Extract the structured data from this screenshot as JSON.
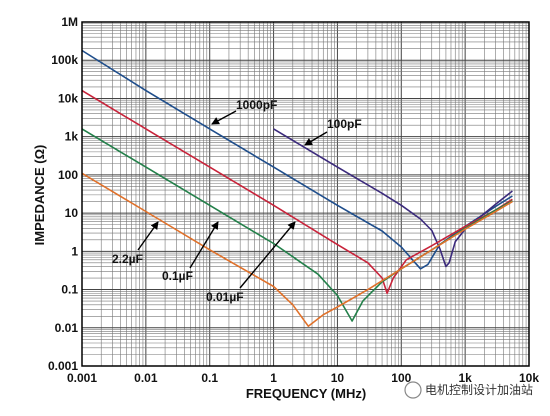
{
  "chart_data": {
    "type": "line",
    "xlabel": "FREQUENCY (MHz)",
    "ylabel": "IMPEDANCE (Ω)",
    "x_scale": "log",
    "y_scale": "log",
    "xlim": [
      0.001,
      10000
    ],
    "ylim": [
      0.001,
      1000000
    ],
    "grid": true,
    "x_ticks": [
      "0.001",
      "0.01",
      "0.1",
      "1",
      "10",
      "100",
      "1k",
      "10k"
    ],
    "y_ticks": [
      "0.001",
      "0.01",
      "0.1",
      "1",
      "10",
      "100",
      "1k",
      "10k",
      "100k",
      "1M"
    ],
    "series": [
      {
        "name": "1000pF",
        "color": "#1f4e8c",
        "points": [
          [
            0.001,
            180000
          ],
          [
            0.01,
            16000
          ],
          [
            0.1,
            1600
          ],
          [
            1,
            160
          ],
          [
            10,
            16
          ],
          [
            50,
            3.4
          ],
          [
            100,
            1.3
          ],
          [
            150,
            0.6
          ],
          [
            200,
            0.35
          ],
          [
            260,
            0.45
          ],
          [
            400,
            1.5
          ],
          [
            1000,
            4.5
          ],
          [
            3000,
            15
          ],
          [
            5500,
            28
          ]
        ]
      },
      {
        "name": "100pF",
        "color": "#3b2a7c",
        "points": [
          [
            1,
            1600
          ],
          [
            10,
            160
          ],
          [
            50,
            33
          ],
          [
            100,
            16
          ],
          [
            200,
            7
          ],
          [
            300,
            3.5
          ],
          [
            400,
            1.2
          ],
          [
            500,
            0.4
          ],
          [
            560,
            0.5
          ],
          [
            700,
            1.8
          ],
          [
            1000,
            3.8
          ],
          [
            3000,
            17
          ],
          [
            5500,
            38
          ]
        ]
      },
      {
        "name": "0.01µF",
        "color": "#c8233a",
        "points": [
          [
            0.001,
            16000
          ],
          [
            0.01,
            1600
          ],
          [
            0.1,
            160
          ],
          [
            1,
            16
          ],
          [
            10,
            1.5
          ],
          [
            30,
            0.5
          ],
          [
            50,
            0.2
          ],
          [
            60,
            0.08
          ],
          [
            75,
            0.2
          ],
          [
            120,
            0.6
          ],
          [
            300,
            1.4
          ],
          [
            1000,
            4.5
          ],
          [
            3000,
            12
          ],
          [
            5500,
            23
          ]
        ]
      },
      {
        "name": "0.1µF",
        "color": "#23804a",
        "points": [
          [
            0.001,
            1600
          ],
          [
            0.01,
            160
          ],
          [
            0.1,
            16
          ],
          [
            1,
            1.6
          ],
          [
            5,
            0.25
          ],
          [
            10,
            0.07
          ],
          [
            17,
            0.015
          ],
          [
            25,
            0.05
          ],
          [
            50,
            0.16
          ],
          [
            100,
            0.35
          ],
          [
            300,
            1.1
          ],
          [
            1000,
            4
          ],
          [
            3000,
            12
          ],
          [
            5500,
            21
          ]
        ]
      },
      {
        "name": "2.2µF",
        "color": "#e0712a",
        "points": [
          [
            0.001,
            110
          ],
          [
            0.01,
            11
          ],
          [
            0.1,
            1.1
          ],
          [
            1,
            0.12
          ],
          [
            2,
            0.04
          ],
          [
            3.5,
            0.011
          ],
          [
            6,
            0.022
          ],
          [
            10,
            0.035
          ],
          [
            30,
            0.1
          ],
          [
            100,
            0.35
          ],
          [
            300,
            1.1
          ],
          [
            1000,
            3.8
          ],
          [
            3000,
            11
          ],
          [
            5500,
            20
          ]
        ]
      }
    ],
    "annotations": [
      "1000pF",
      "100pF",
      "2.2µF",
      "0.1µF",
      "0.01µF"
    ]
  },
  "watermark": {
    "text": "电机控制设计加油站"
  }
}
